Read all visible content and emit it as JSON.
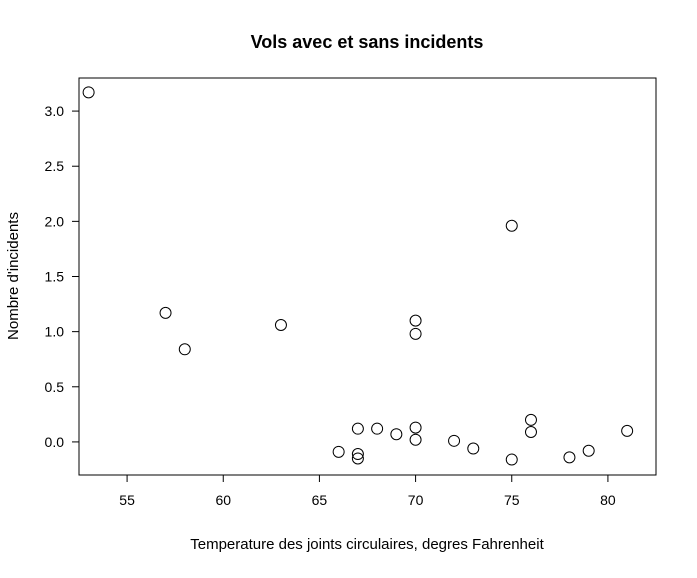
{
  "chart_data": {
    "type": "scatter",
    "title": "Vols avec et sans incidents",
    "xlabel": "Temperature des joints circulaires, degres Fahrenheit",
    "ylabel": "Nombre d'incidents",
    "xlim": [
      52.5,
      82.5
    ],
    "ylim": [
      -0.3,
      3.3
    ],
    "xticks": [
      55,
      60,
      65,
      70,
      75,
      80
    ],
    "yticks": [
      0.0,
      0.5,
      1.0,
      1.5,
      2.0,
      2.5,
      3.0
    ],
    "xtick_labels": [
      "55",
      "60",
      "65",
      "70",
      "75",
      "80"
    ],
    "ytick_labels": [
      "0.0",
      "0.5",
      "1.0",
      "1.5",
      "2.0",
      "2.5",
      "3.0"
    ],
    "grid": false,
    "legend": "none",
    "marker": "open-circle",
    "points": [
      {
        "x": 53,
        "y": 3.17
      },
      {
        "x": 57,
        "y": 1.17
      },
      {
        "x": 58,
        "y": 0.84
      },
      {
        "x": 63,
        "y": 1.06
      },
      {
        "x": 66,
        "y": -0.09
      },
      {
        "x": 67,
        "y": 0.12
      },
      {
        "x": 67,
        "y": -0.11
      },
      {
        "x": 67,
        "y": -0.15
      },
      {
        "x": 68,
        "y": 0.12
      },
      {
        "x": 69,
        "y": 0.07
      },
      {
        "x": 70,
        "y": 1.1
      },
      {
        "x": 70,
        "y": 0.98
      },
      {
        "x": 70,
        "y": 0.13
      },
      {
        "x": 70,
        "y": 0.02
      },
      {
        "x": 72,
        "y": 0.01
      },
      {
        "x": 73,
        "y": -0.06
      },
      {
        "x": 75,
        "y": 1.96
      },
      {
        "x": 75,
        "y": -0.16
      },
      {
        "x": 76,
        "y": 0.2
      },
      {
        "x": 76,
        "y": 0.09
      },
      {
        "x": 78,
        "y": -0.14
      },
      {
        "x": 79,
        "y": -0.08
      },
      {
        "x": 81,
        "y": 0.1
      }
    ]
  }
}
